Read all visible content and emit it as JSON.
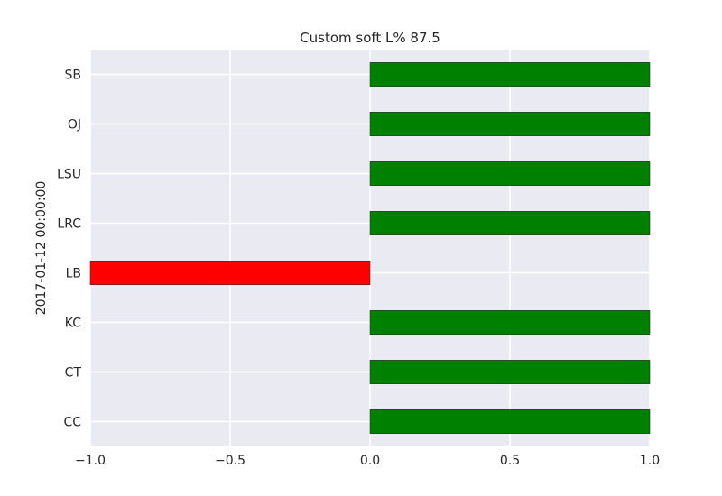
{
  "chart_data": {
    "type": "bar",
    "orientation": "horizontal",
    "title": "Custom soft L% 87.5",
    "xlabel": "",
    "ylabel": "2017-01-12 00:00:00",
    "categories": [
      "SB",
      "OJ",
      "LSU",
      "LRC",
      "LB",
      "KC",
      "CT",
      "CC"
    ],
    "values": [
      1.0,
      1.0,
      1.0,
      1.0,
      -1.0,
      1.0,
      1.0,
      1.0
    ],
    "xlim": [
      -1.0,
      1.0
    ],
    "xticks": [
      -1.0,
      -0.5,
      0.0,
      0.5,
      1.0
    ],
    "xtick_labels": [
      "−1.0",
      "−0.5",
      "0.0",
      "0.5",
      "1.0"
    ],
    "grid": true,
    "colors": {
      "positive": "#008000",
      "negative": "#ff0000",
      "background": "#eaeaf2",
      "grid": "#ffffff"
    }
  }
}
